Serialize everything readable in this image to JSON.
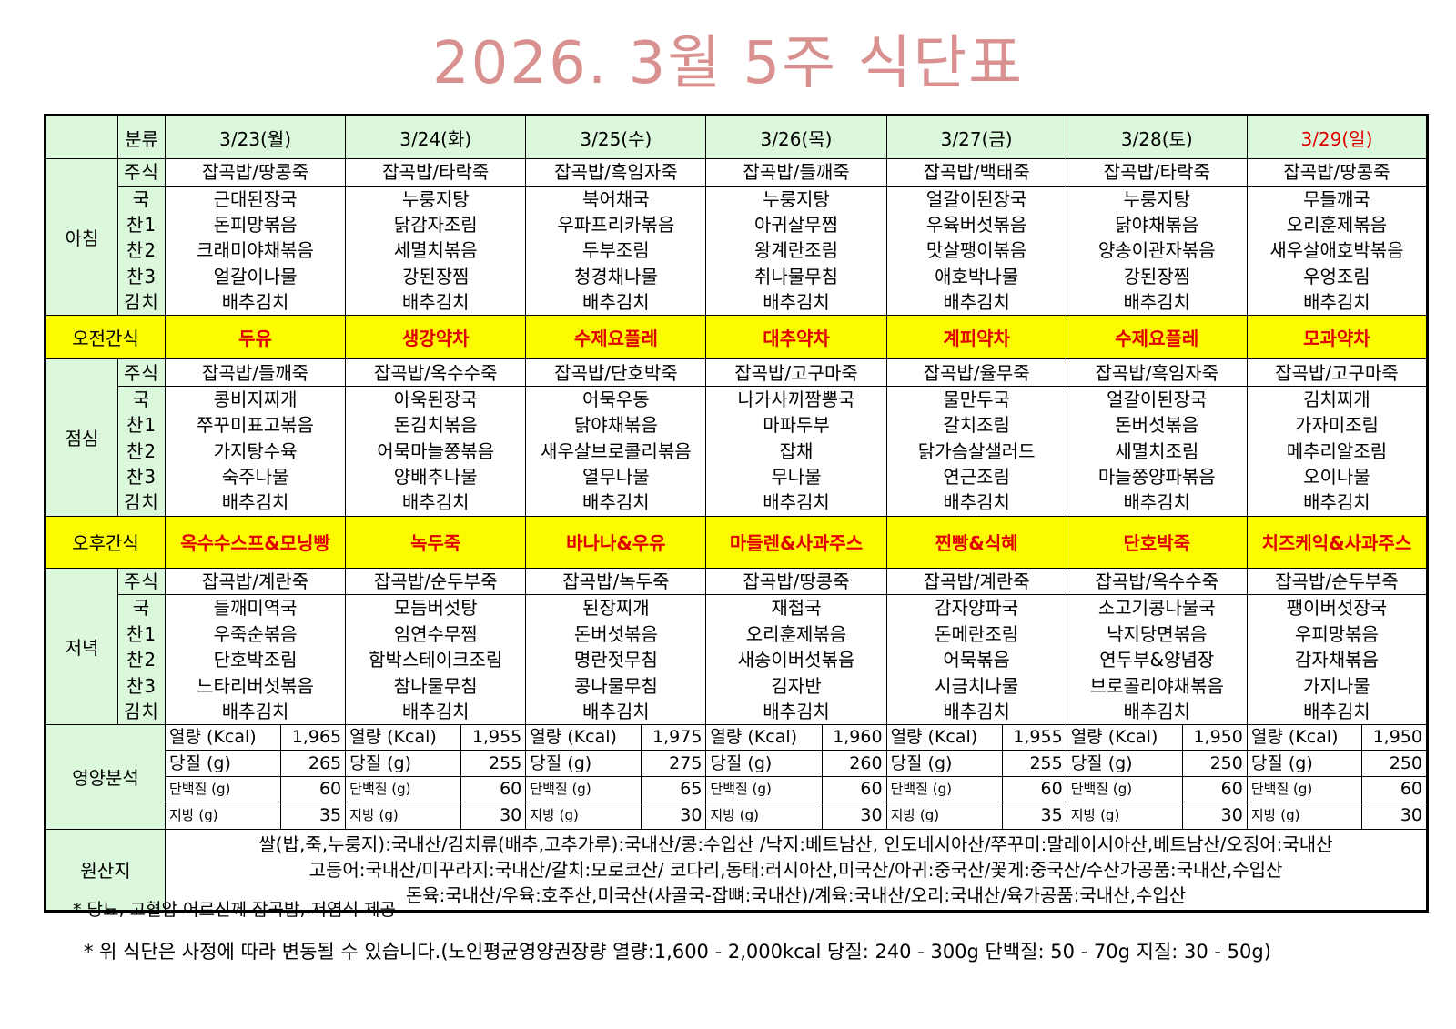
{
  "title": "2026. 3월 5주 식단표",
  "header": {
    "category_label": "분류",
    "days": [
      "3/23(월)",
      "3/24(화)",
      "3/25(수)",
      "3/26(목)",
      "3/27(금)",
      "3/28(토)",
      "3/29(일)"
    ]
  },
  "meal_categories": [
    "주식",
    "국",
    "찬1",
    "찬2",
    "찬3",
    "김치"
  ],
  "meals": {
    "breakfast": {
      "label": "아침",
      "days": [
        [
          "잡곡밥/땅콩죽",
          "근대된장국",
          "돈피망볶음",
          "크래미야채볶음",
          "얼갈이나물",
          "배추김치"
        ],
        [
          "잡곡밥/타락죽",
          "누룽지탕",
          "닭감자조림",
          "세멸치볶음",
          "강된장찜",
          "배추김치"
        ],
        [
          "잡곡밥/흑임자죽",
          "북어채국",
          "우파프리카볶음",
          "두부조림",
          "청경채나물",
          "배추김치"
        ],
        [
          "잡곡밥/들깨죽",
          "누룽지탕",
          "아귀살무찜",
          "왕계란조림",
          "취나물무침",
          "배추김치"
        ],
        [
          "잡곡밥/백태죽",
          "얼갈이된장국",
          "우육버섯볶음",
          "맛살팽이볶음",
          "애호박나물",
          "배추김치"
        ],
        [
          "잡곡밥/타락죽",
          "누룽지탕",
          "닭야채볶음",
          "양송이관자볶음",
          "강된장찜",
          "배추김치"
        ],
        [
          "잡곡밥/땅콩죽",
          "무들깨국",
          "오리훈제볶음",
          "새우살애호박볶음",
          "우엉조림",
          "배추김치"
        ]
      ]
    },
    "morning_snack": {
      "label": "오전간식",
      "days": [
        "두유",
        "생강약차",
        "수제요플레",
        "대추약차",
        "계피약차",
        "수제요플레",
        "모과약차"
      ]
    },
    "lunch": {
      "label": "점심",
      "days": [
        [
          "잡곡밥/들깨죽",
          "콩비지찌개",
          "쭈꾸미표고볶음",
          "가지탕수육",
          "숙주나물",
          "배추김치"
        ],
        [
          "잡곡밥/옥수수죽",
          "아욱된장국",
          "돈김치볶음",
          "어묵마늘쫑볶음",
          "양배추나물",
          "배추김치"
        ],
        [
          "잡곡밥/단호박죽",
          "어묵우동",
          "닭야채볶음",
          "새우살브로콜리볶음",
          "열무나물",
          "배추김치"
        ],
        [
          "잡곡밥/고구마죽",
          "나가사끼짬뽕국",
          "마파두부",
          "잡채",
          "무나물",
          "배추김치"
        ],
        [
          "잡곡밥/율무죽",
          "물만두국",
          "갈치조림",
          "닭가슴살샐러드",
          "연근조림",
          "배추김치"
        ],
        [
          "잡곡밥/흑임자죽",
          "얼갈이된장국",
          "돈버섯볶음",
          "세멸치조림",
          "마늘쫑양파볶음",
          "배추김치"
        ],
        [
          "잡곡밥/고구마죽",
          "김치찌개",
          "가자미조림",
          "메추리알조림",
          "오이나물",
          "배추김치"
        ]
      ]
    },
    "afternoon_snack": {
      "label": "오후간식",
      "days": [
        "옥수수스프&모닝빵",
        "녹두죽",
        "바나나&우유",
        "마들렌&사과주스",
        "찐빵&식혜",
        "단호박죽",
        "치즈케익&사과주스"
      ]
    },
    "dinner": {
      "label": "저녁",
      "days": [
        [
          "잡곡밥/계란죽",
          "들깨미역국",
          "우죽순볶음",
          "단호박조림",
          "느타리버섯볶음",
          "배추김치"
        ],
        [
          "잡곡밥/순두부죽",
          "모듬버섯탕",
          "임연수무찜",
          "함박스테이크조림",
          "참나물무침",
          "배추김치"
        ],
        [
          "잡곡밥/녹두죽",
          "된장찌개",
          "돈버섯볶음",
          "명란젓무침",
          "콩나물무침",
          "배추김치"
        ],
        [
          "잡곡밥/땅콩죽",
          "재첩국",
          "오리훈제볶음",
          "새송이버섯볶음",
          "김자반",
          "배추김치"
        ],
        [
          "잡곡밥/계란죽",
          "감자양파국",
          "돈메란조림",
          "어묵볶음",
          "시금치나물",
          "배추김치"
        ],
        [
          "잡곡밥/옥수수죽",
          "소고기콩나물국",
          "낙지당면볶음",
          "연두부&양념장",
          "브로콜리야채볶음",
          "배추김치"
        ],
        [
          "잡곡밥/순두부죽",
          "팽이버섯장국",
          "우피망볶음",
          "감자채볶음",
          "가지나물",
          "배추김치"
        ]
      ]
    }
  },
  "nutrition": {
    "label": "영양분석",
    "item_labels": [
      "열량 (Kcal)",
      "당질 (g)",
      "단백질 (g)",
      "지방 (g)"
    ],
    "days": [
      [
        "1,965",
        "265",
        "60",
        "35"
      ],
      [
        "1,955",
        "255",
        "60",
        "30"
      ],
      [
        "1,975",
        "275",
        "65",
        "30"
      ],
      [
        "1,960",
        "260",
        "60",
        "30"
      ],
      [
        "1,955",
        "255",
        "60",
        "35"
      ],
      [
        "1,950",
        "250",
        "60",
        "30"
      ],
      [
        "1,950",
        "250",
        "60",
        "30"
      ]
    ]
  },
  "origin": {
    "label": "원산지",
    "lines": [
      "쌀(밥,죽,누룽지):국내산/김치류(배추,고추가루):국내산/콩:수입산 /낙지:베트남산, 인도네시아산/쭈꾸미:말레이시아산,베트남산/오징어:국내산",
      "고등어:국내산/미꾸라지:국내산/갈치:모로코산/ 코다리,동태:러시아산,미국산/아귀:중국산/꽃게:중국산/수산가공품:국내산,수입산",
      "돈육:국내산/우육:호주산,미국산(사골국-잡뼈:국내산)/계육:국내산/오리:국내산/육가공품:국내산,수입산"
    ]
  },
  "notes": [
    "* 당뇨, 고혈압 어르신께 잡곡밥, 저염식 제공",
    "* 위 식단은 사정에 따라 변동될 수 있습니다.(노인평균영양권장량 열량:1,600 - 2,000kcal 당질: 240 - 300g 단백질: 50 - 70g 지질: 30 - 50g)"
  ],
  "colors": {
    "title": "#d8918f",
    "header_bg": "#dcf8dc",
    "snack_bg": "#fcfb02",
    "snack_text": "#e00000",
    "sunday_text": "#e00000"
  }
}
